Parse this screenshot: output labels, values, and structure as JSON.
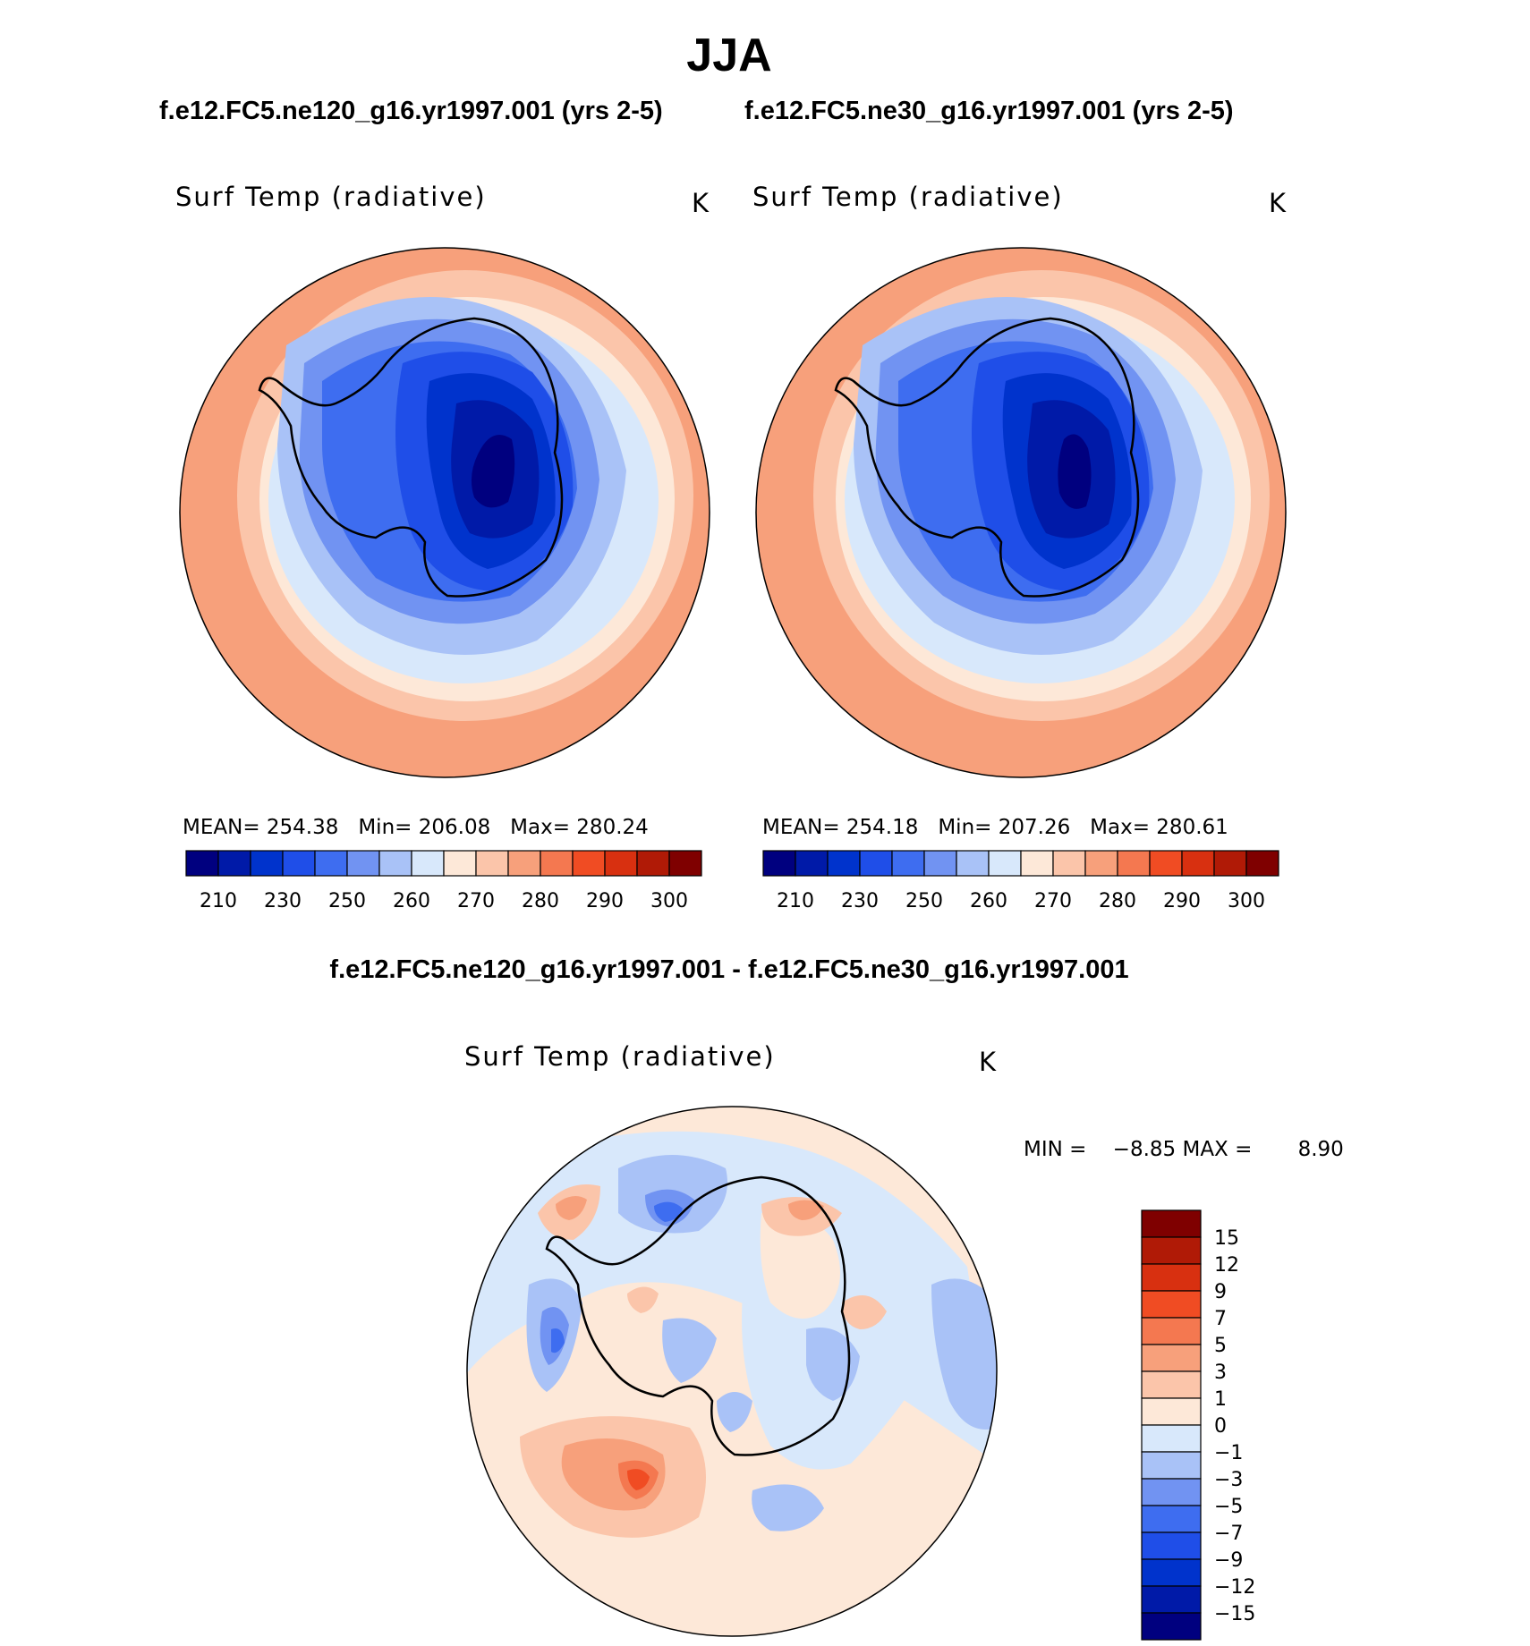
{
  "title": "JJA",
  "panels": [
    {
      "case": "f.e12.FC5.ne120_g16.yr1997.001 (yrs 2-5)",
      "variable": "Surf Temp (radiative)",
      "units": "K",
      "stats": {
        "mean_label": "MEAN=",
        "mean": "254.38",
        "min_label": "Min=",
        "min": "206.08",
        "max_label": "Max=",
        "max": "280.24"
      }
    },
    {
      "case": "f.e12.FC5.ne30_g16.yr1997.001 (yrs 2-5)",
      "variable": "Surf Temp (radiative)",
      "units": "K",
      "stats": {
        "mean_label": "MEAN=",
        "mean": "254.18",
        "min_label": "Min=",
        "min": "207.26",
        "max_label": "Max=",
        "max": "280.61"
      }
    }
  ],
  "top_colorbar": {
    "colors": [
      "#00007f",
      "#001aa8",
      "#0033cc",
      "#1f4ee8",
      "#3e6df0",
      "#7193f2",
      "#a9c2f7",
      "#d8e8fb",
      "#fde8d8",
      "#fbc5aa",
      "#f7a07b",
      "#f47850",
      "#f04c23",
      "#d83010",
      "#b01a06",
      "#7f0000"
    ],
    "labels": [
      "210",
      "230",
      "250",
      "260",
      "270",
      "280",
      "290",
      "300"
    ]
  },
  "diff": {
    "title": "f.e12.FC5.ne120_g16.yr1997.001 - f.e12.FC5.ne30_g16.yr1997.001",
    "variable": "Surf Temp (radiative)",
    "units": "K",
    "min_label": "MIN =",
    "min": "−8.85",
    "max_label": "MAX =",
    "max": "8.90"
  },
  "diff_colorbar": {
    "colors": [
      "#7f0000",
      "#b01a06",
      "#d83010",
      "#f04c23",
      "#f47850",
      "#f7a07b",
      "#fbc5aa",
      "#fde8d8",
      "#d8e8fb",
      "#a9c2f7",
      "#7193f2",
      "#3e6df0",
      "#1f4ee8",
      "#0033cc",
      "#001aa8",
      "#00007f"
    ],
    "labels": [
      "15",
      "12",
      "9",
      "7",
      "5",
      "3",
      "1",
      "0",
      "−1",
      "−3",
      "−5",
      "−7",
      "−9",
      "−12",
      "−15"
    ]
  }
}
